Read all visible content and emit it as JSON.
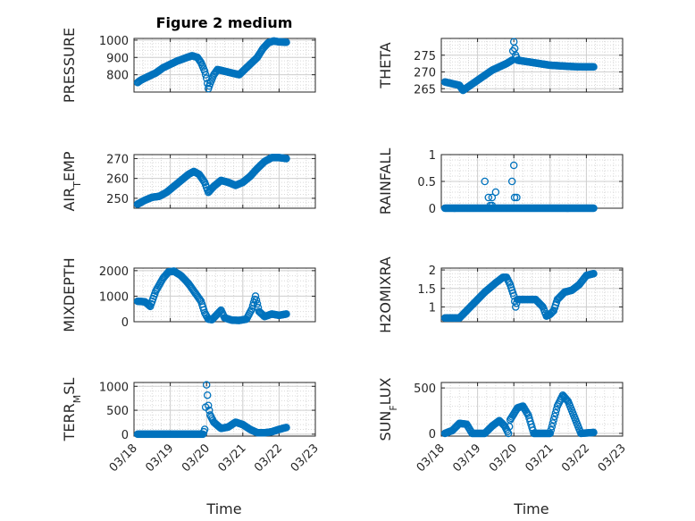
{
  "figure_title": "Figure 2 medium",
  "colors": {
    "marker": "#0072BD",
    "grid": "#dcdcdc",
    "axis": "#262626",
    "background": "#ffffff"
  },
  "chart_data": [
    {
      "type": "scatter",
      "ylabel": "PRESSURE",
      "ylim": [
        700,
        1010
      ],
      "yticks": [
        800,
        900,
        1000
      ],
      "ytick_labels": [
        "800",
        "900",
        "1000"
      ],
      "xlim": [
        0,
        5
      ],
      "x_tick_labels": [
        "03/18",
        "03/19",
        "03/20",
        "03/21",
        "03/22",
        "03/23"
      ],
      "grid": true,
      "keypoints": [
        [
          0.1,
          755
        ],
        [
          0.2,
          770
        ],
        [
          0.4,
          790
        ],
        [
          0.6,
          810
        ],
        [
          0.8,
          840
        ],
        [
          1.0,
          860
        ],
        [
          1.2,
          880
        ],
        [
          1.4,
          895
        ],
        [
          1.6,
          910
        ],
        [
          1.75,
          900
        ],
        [
          1.85,
          870
        ],
        [
          1.95,
          820
        ],
        [
          2.0,
          780
        ],
        [
          2.05,
          720
        ],
        [
          2.1,
          750
        ],
        [
          2.2,
          800
        ],
        [
          2.3,
          830
        ],
        [
          2.5,
          820
        ],
        [
          2.7,
          810
        ],
        [
          2.9,
          800
        ],
        [
          3.0,
          820
        ],
        [
          3.2,
          860
        ],
        [
          3.4,
          900
        ],
        [
          3.55,
          950
        ],
        [
          3.7,
          985
        ],
        [
          3.85,
          995
        ],
        [
          4.0,
          990
        ],
        [
          4.2,
          988
        ]
      ]
    },
    {
      "type": "scatter",
      "ylabel": "THETA",
      "ylim": [
        264,
        280
      ],
      "yticks": [
        265,
        270,
        275
      ],
      "ytick_labels": [
        "265",
        "270",
        "275"
      ],
      "xlim": [
        0,
        5
      ],
      "x_tick_labels": [
        "03/18",
        "03/19",
        "03/20",
        "03/21",
        "03/22",
        "03/23"
      ],
      "grid": true,
      "keypoints": [
        [
          0.1,
          267
        ],
        [
          0.3,
          266.5
        ],
        [
          0.5,
          266
        ],
        [
          0.6,
          264.5
        ],
        [
          0.8,
          266
        ],
        [
          1.0,
          267.5
        ],
        [
          1.2,
          269
        ],
        [
          1.4,
          270.5
        ],
        [
          1.6,
          271.5
        ],
        [
          1.8,
          272.5
        ],
        [
          1.95,
          273.5
        ],
        [
          2.0,
          279
        ],
        [
          2.05,
          275
        ],
        [
          2.1,
          273.5
        ],
        [
          2.4,
          273
        ],
        [
          2.7,
          272.5
        ],
        [
          3.0,
          272
        ],
        [
          3.3,
          271.8
        ],
        [
          3.6,
          271.6
        ],
        [
          3.9,
          271.5
        ],
        [
          4.2,
          271.5
        ]
      ]
    },
    {
      "type": "scatter",
      "ylabel": "AIR_TEMP",
      "ylim": [
        245,
        272
      ],
      "yticks": [
        250,
        260,
        270
      ],
      "ytick_labels": [
        "250",
        "260",
        "270"
      ],
      "xlim": [
        0,
        5
      ],
      "x_tick_labels": [
        "03/18",
        "03/19",
        "03/20",
        "03/21",
        "03/22",
        "03/23"
      ],
      "grid": true,
      "keypoints": [
        [
          0.1,
          247
        ],
        [
          0.3,
          249
        ],
        [
          0.5,
          250.5
        ],
        [
          0.7,
          251
        ],
        [
          0.9,
          253
        ],
        [
          1.1,
          256
        ],
        [
          1.3,
          259
        ],
        [
          1.5,
          262
        ],
        [
          1.65,
          263.5
        ],
        [
          1.8,
          262
        ],
        [
          1.95,
          258
        ],
        [
          2.05,
          253
        ],
        [
          2.2,
          256
        ],
        [
          2.4,
          259
        ],
        [
          2.6,
          258
        ],
        [
          2.8,
          256.5
        ],
        [
          3.0,
          258
        ],
        [
          3.2,
          261
        ],
        [
          3.4,
          265
        ],
        [
          3.6,
          268.5
        ],
        [
          3.8,
          270.5
        ],
        [
          4.0,
          270.5
        ],
        [
          4.2,
          270
        ]
      ]
    },
    {
      "type": "scatter",
      "ylabel": "RAINFALL",
      "ylim": [
        0,
        1
      ],
      "yticks": [
        0,
        0.5,
        1
      ],
      "ytick_labels": [
        "0",
        "0.5",
        "1"
      ],
      "xlim": [
        0,
        5
      ],
      "x_tick_labels": [
        "03/18",
        "03/19",
        "03/20",
        "03/21",
        "03/22",
        "03/23"
      ],
      "grid": true,
      "keypoints": [
        [
          0.1,
          0
        ],
        [
          4.2,
          0
        ]
      ],
      "extra_points": [
        [
          1.2,
          0.5
        ],
        [
          1.3,
          0.2
        ],
        [
          1.4,
          0.2
        ],
        [
          1.5,
          0.3
        ],
        [
          1.4,
          0.05
        ],
        [
          1.95,
          0.5
        ],
        [
          2.0,
          0.8
        ],
        [
          2.02,
          0.2
        ],
        [
          2.08,
          0.2
        ],
        [
          1.35,
          0.05
        ]
      ]
    },
    {
      "type": "scatter",
      "ylabel": "MIXDEPTH",
      "ylim": [
        0,
        2100
      ],
      "yticks": [
        0,
        1000,
        2000
      ],
      "ytick_labels": [
        "0",
        "1000",
        "2000"
      ],
      "xlim": [
        0,
        5
      ],
      "x_tick_labels": [
        "03/18",
        "03/19",
        "03/20",
        "03/21",
        "03/22",
        "03/23"
      ],
      "grid": true,
      "keypoints": [
        [
          0.1,
          800
        ],
        [
          0.3,
          780
        ],
        [
          0.45,
          600
        ],
        [
          0.6,
          1200
        ],
        [
          0.8,
          1700
        ],
        [
          0.95,
          1950
        ],
        [
          1.1,
          1980
        ],
        [
          1.3,
          1800
        ],
        [
          1.5,
          1500
        ],
        [
          1.7,
          1100
        ],
        [
          1.85,
          800
        ],
        [
          1.95,
          350
        ],
        [
          2.05,
          100
        ],
        [
          2.15,
          80
        ],
        [
          2.3,
          300
        ],
        [
          2.4,
          450
        ],
        [
          2.5,
          150
        ],
        [
          2.7,
          60
        ],
        [
          2.9,
          50
        ],
        [
          3.1,
          100
        ],
        [
          3.25,
          500
        ],
        [
          3.35,
          1000
        ],
        [
          3.45,
          400
        ],
        [
          3.6,
          200
        ],
        [
          3.8,
          300
        ],
        [
          4.0,
          250
        ],
        [
          4.2,
          300
        ]
      ]
    },
    {
      "type": "scatter",
      "ylabel": "H2OMIXRA",
      "ylim": [
        0.6,
        2.05
      ],
      "yticks": [
        1,
        1.5,
        2
      ],
      "ytick_labels": [
        "1",
        "1.5",
        "2"
      ],
      "xlim": [
        0,
        5
      ],
      "x_tick_labels": [
        "03/18",
        "03/19",
        "03/20",
        "03/21",
        "03/22",
        "03/23"
      ],
      "grid": true,
      "keypoints": [
        [
          0.1,
          0.7
        ],
        [
          0.5,
          0.7
        ],
        [
          0.6,
          0.8
        ],
        [
          0.9,
          1.1
        ],
        [
          1.2,
          1.4
        ],
        [
          1.5,
          1.65
        ],
        [
          1.7,
          1.8
        ],
        [
          1.8,
          1.8
        ],
        [
          1.9,
          1.6
        ],
        [
          2.0,
          1.3
        ],
        [
          2.05,
          1.0
        ],
        [
          2.1,
          1.2
        ],
        [
          2.3,
          1.2
        ],
        [
          2.6,
          1.2
        ],
        [
          2.8,
          1.0
        ],
        [
          2.9,
          0.75
        ],
        [
          3.0,
          0.8
        ],
        [
          3.1,
          0.9
        ],
        [
          3.2,
          1.2
        ],
        [
          3.4,
          1.4
        ],
        [
          3.6,
          1.45
        ],
        [
          3.8,
          1.6
        ],
        [
          4.0,
          1.85
        ],
        [
          4.2,
          1.9
        ]
      ]
    },
    {
      "type": "scatter",
      "ylabel": "TERR_MSL",
      "ylim": [
        -40,
        1080
      ],
      "yticks": [
        0,
        500,
        1000
      ],
      "ytick_labels": [
        "0",
        "500",
        "1000"
      ],
      "xlim": [
        0,
        5
      ],
      "x_tick_labels": [
        "03/18",
        "03/19",
        "03/20",
        "03/21",
        "03/22",
        "03/23"
      ],
      "grid": true,
      "keypoints": [
        [
          0.1,
          0
        ],
        [
          1.9,
          0
        ],
        [
          1.95,
          100
        ],
        [
          2.0,
          1030
        ],
        [
          2.05,
          600
        ],
        [
          2.1,
          400
        ],
        [
          2.2,
          250
        ],
        [
          2.4,
          120
        ],
        [
          2.6,
          150
        ],
        [
          2.8,
          250
        ],
        [
          3.0,
          200
        ],
        [
          3.2,
          100
        ],
        [
          3.4,
          30
        ],
        [
          3.6,
          30
        ],
        [
          3.8,
          50
        ],
        [
          4.0,
          100
        ],
        [
          4.2,
          140
        ]
      ]
    },
    {
      "type": "scatter",
      "ylabel": "SUN_FLUX",
      "ylim": [
        -30,
        560
      ],
      "yticks": [
        0,
        500
      ],
      "ytick_labels": [
        "0",
        "500"
      ],
      "xlim": [
        0,
        5
      ],
      "x_tick_labels": [
        "03/18",
        "03/19",
        "03/20",
        "03/21",
        "03/22",
        "03/23"
      ],
      "grid": true,
      "keypoints": [
        [
          0.1,
          0
        ],
        [
          0.3,
          30
        ],
        [
          0.5,
          110
        ],
        [
          0.7,
          100
        ],
        [
          0.85,
          0
        ],
        [
          1.2,
          0
        ],
        [
          1.4,
          80
        ],
        [
          1.6,
          140
        ],
        [
          1.75,
          80
        ],
        [
          1.85,
          0
        ],
        [
          1.9,
          150
        ],
        [
          2.1,
          280
        ],
        [
          2.25,
          300
        ],
        [
          2.4,
          200
        ],
        [
          2.55,
          0
        ],
        [
          3.0,
          0
        ],
        [
          3.2,
          300
        ],
        [
          3.35,
          420
        ],
        [
          3.5,
          350
        ],
        [
          3.7,
          150
        ],
        [
          3.85,
          0
        ],
        [
          4.2,
          10
        ]
      ]
    }
  ],
  "xlabel": "Time"
}
